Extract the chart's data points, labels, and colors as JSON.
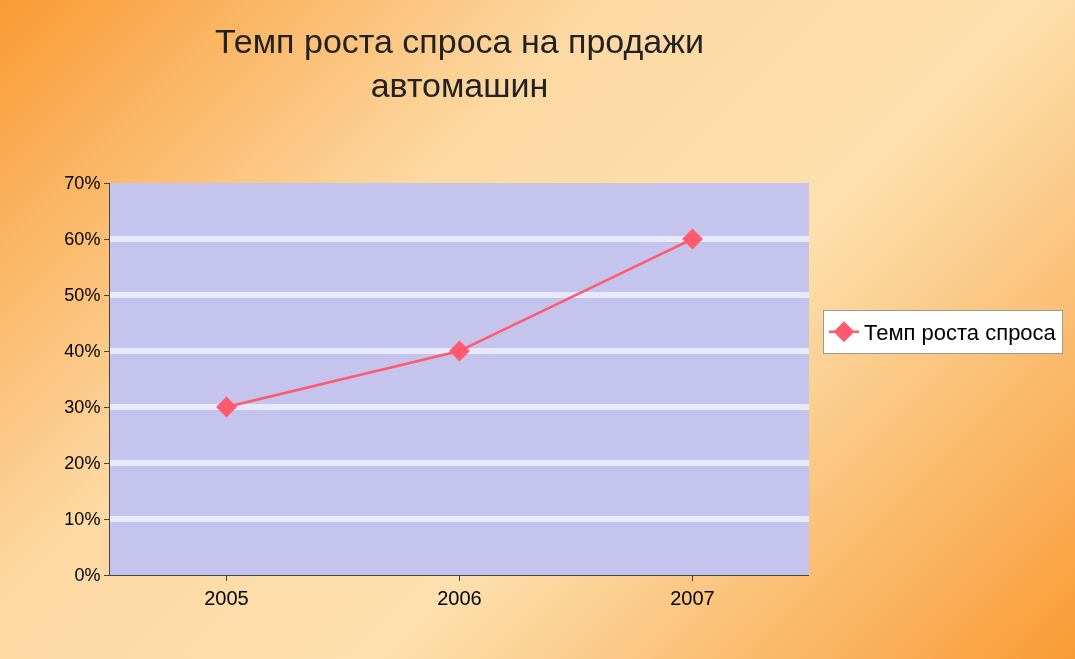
{
  "chart_data": {
    "type": "line",
    "title": "Темп роста спроса на продажи\nавтомашин",
    "categories": [
      "2005",
      "2006",
      "2007"
    ],
    "series": [
      {
        "name": "Темп роста спроса",
        "color": "#ff5a6e",
        "values": [
          30,
          40,
          60
        ]
      }
    ],
    "ylim": [
      0,
      70
    ],
    "yticks": [
      {
        "value": 0,
        "label": "0%"
      },
      {
        "value": 10,
        "label": "10%"
      },
      {
        "value": 20,
        "label": "20%"
      },
      {
        "value": 30,
        "label": "30%"
      },
      {
        "value": 40,
        "label": "40%"
      },
      {
        "value": 50,
        "label": "50%"
      },
      {
        "value": 60,
        "label": "60%"
      },
      {
        "value": 70,
        "label": "70%"
      }
    ],
    "grid": "y",
    "legend": "right",
    "marker": "diamond",
    "line_style": "solid"
  }
}
